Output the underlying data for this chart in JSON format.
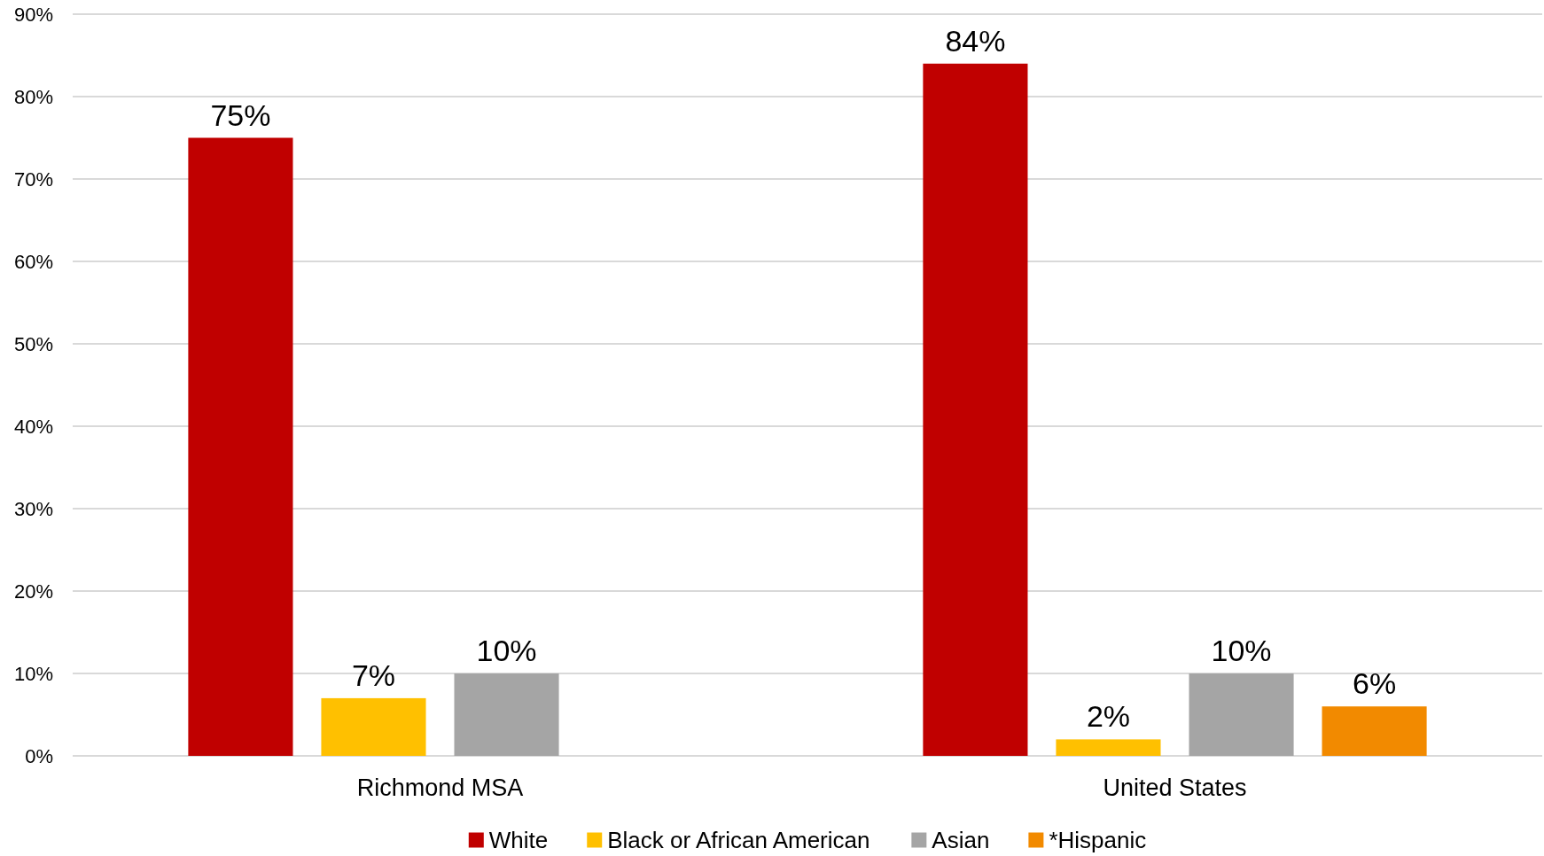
{
  "chart_data": {
    "type": "bar",
    "categories": [
      "Richmond MSA",
      "United States"
    ],
    "series": [
      {
        "name": "White",
        "color": "#c00000",
        "values": [
          75,
          84
        ],
        "value_labels": [
          "75%",
          "84%"
        ]
      },
      {
        "name": "Black or African American",
        "color": "#ffc000",
        "values": [
          7,
          2
        ],
        "value_labels": [
          "7%",
          "2%"
        ]
      },
      {
        "name": "Asian",
        "color": "#a5a5a5",
        "values": [
          10,
          10
        ],
        "value_labels": [
          "10%",
          "10%"
        ]
      },
      {
        "name": "*Hispanic",
        "color": "#f28a00",
        "values": [
          null,
          6
        ],
        "value_labels": [
          null,
          "6%"
        ]
      }
    ],
    "ylim": [
      0,
      90
    ],
    "yticks": [
      {
        "value": 0,
        "label": "0%"
      },
      {
        "value": 10,
        "label": "10%"
      },
      {
        "value": 20,
        "label": "20%"
      },
      {
        "value": 30,
        "label": "30%"
      },
      {
        "value": 40,
        "label": "40%"
      },
      {
        "value": 50,
        "label": "50%"
      },
      {
        "value": 60,
        "label": "60%"
      },
      {
        "value": 70,
        "label": "70%"
      },
      {
        "value": 80,
        "label": "80%"
      },
      {
        "value": 90,
        "label": "90%"
      }
    ],
    "grid": "y",
    "legend": "bottom"
  }
}
